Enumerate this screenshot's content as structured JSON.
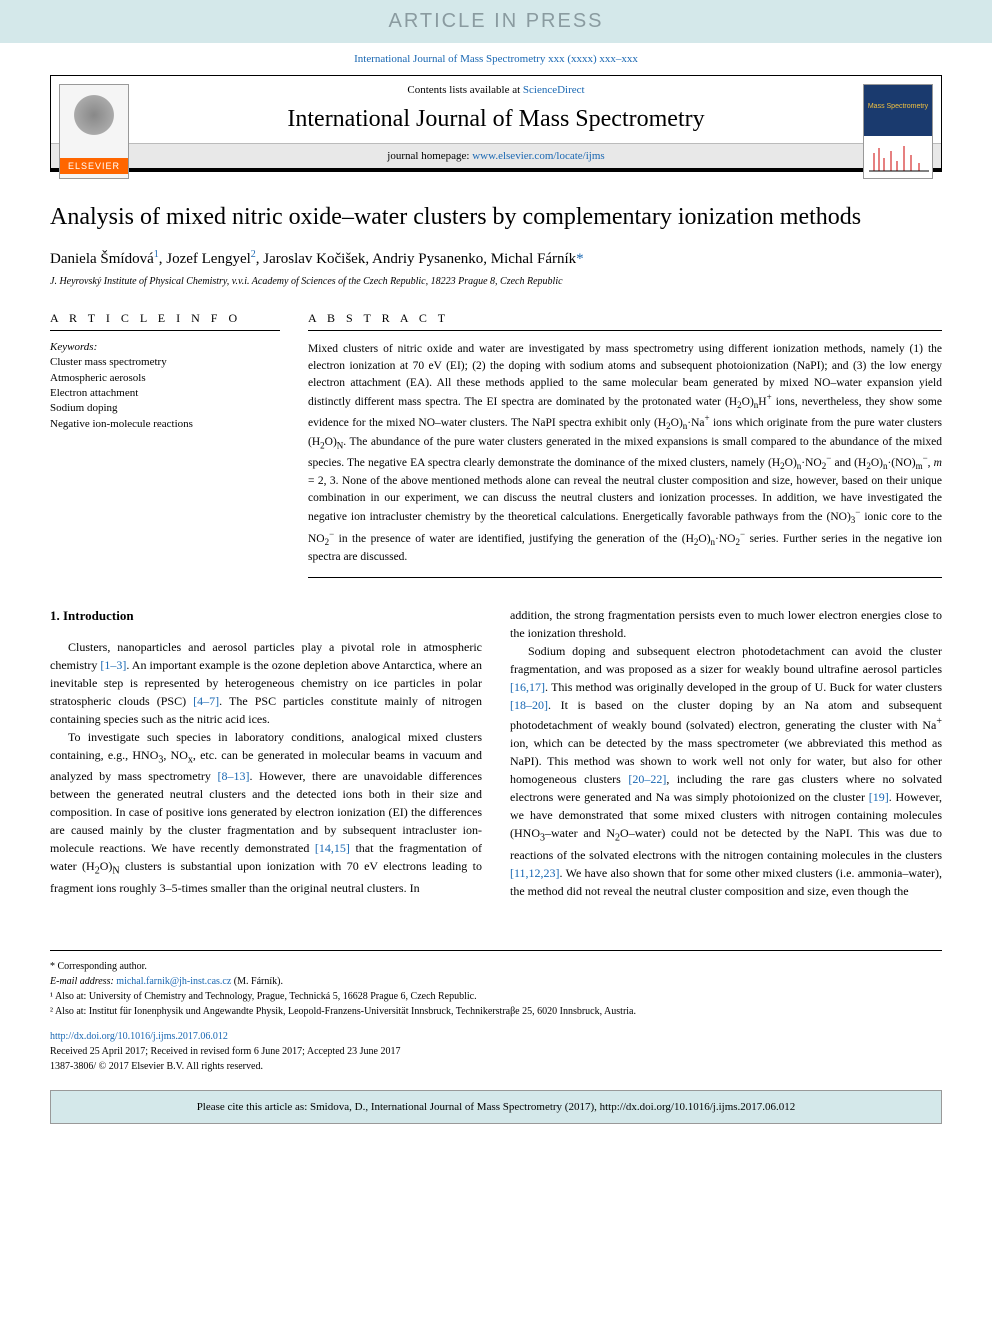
{
  "banner": {
    "text": "ARTICLE IN PRESS",
    "bg": "#d4e8ea",
    "fg": "#8a9ba0"
  },
  "journal_ref": "International Journal of Mass Spectrometry xxx (xxxx) xxx–xxx",
  "header": {
    "contents_text": "Contents lists available at ",
    "contents_link": "ScienceDirect",
    "journal_name": "International Journal of Mass Spectrometry",
    "homepage_label": "journal homepage: ",
    "homepage_url": "www.elsevier.com/locate/ijms",
    "publisher_logo": "ELSEVIER",
    "cover_logo": "Mass Spectrometry"
  },
  "article": {
    "title": "Analysis of mixed nitric oxide–water clusters by complementary ionization methods",
    "authors_html": "Daniela Šmídová<sup>1</sup>, Jozef Lengyel<sup>2</sup>, Jaroslav Kočišek, Andriy Pysanenko, Michal Fárník<span class='corr'>*</span>",
    "affiliation": "J. Heyrovský Institute of Physical Chemistry, v.v.i. Academy of Sciences of the Czech Republic, 18223 Prague 8, Czech Republic"
  },
  "info": {
    "header": "A R T I C L E  I N F O",
    "keywords_label": "Keywords:",
    "keywords": [
      "Cluster mass spectrometry",
      "Atmospheric aerosols",
      "Electron attachment",
      "Sodium doping",
      "Negative ion-molecule reactions"
    ]
  },
  "abstract": {
    "header": "A B S T R A C T",
    "text_html": "Mixed clusters of nitric oxide and water are investigated by mass spectrometry using different ionization methods, namely (1) the electron ionization at 70 eV (EI); (2) the doping with sodium atoms and subsequent photoionization (NaPI); and (3) the low energy electron attachment (EA). All these methods applied to the same molecular beam generated by mixed NO–water expansion yield distinctly different mass spectra. The EI spectra are dominated by the protonated water (H<sub>2</sub>O)<sub>n</sub>H<sup>+</sup> ions, nevertheless, they show some evidence for the mixed NO–water clusters. The NaPI spectra exhibit only (H<sub>2</sub>O)<sub>n</sub>·Na<sup>+</sup> ions which originate from the pure water clusters (H<sub>2</sub>O)<sub>N</sub>. The abundance of the pure water clusters generated in the mixed expansions is small compared to the abundance of the mixed species. The negative EA spectra clearly demonstrate the dominance of the mixed clusters, namely (H<sub>2</sub>O)<sub>n</sub>·NO<sub>2</sub><sup>−</sup> and (H<sub>2</sub>O)<sub>n</sub>·(NO)<sub>m</sub><sup>−</sup>, <i>m</i> = 2, 3. None of the above mentioned methods alone can reveal the neutral cluster composition and size, however, based on their unique combination in our experiment, we can discuss the neutral clusters and ionization processes. In addition, we have investigated the negative ion intracluster chemistry by the theoretical calculations. Energetically favorable pathways from the (NO)<sub>3</sub><sup>−</sup> ionic core to the NO<sub>2</sub><sup>−</sup> in the presence of water are identified, justifying the generation of the (H<sub>2</sub>O)<sub>n</sub>·NO<sub>2</sub><sup>−</sup> series. Further series in the negative ion spectra are discussed."
  },
  "intro": {
    "heading": "1. Introduction",
    "p1_html": "Clusters, nanoparticles and aerosol particles play a pivotal role in atmospheric chemistry <a href='#'>[1–3]</a>. An important example is the ozone depletion above Antarctica, where an inevitable step is represented by heterogeneous chemistry on ice particles in polar stratospheric clouds (PSC) <a href='#'>[4–7]</a>. The PSC particles constitute mainly of nitrogen containing species such as the nitric acid ices.",
    "p2_html": "To investigate such species in laboratory conditions, analogical mixed clusters containing, e.g., HNO<sub>3</sub>, NO<sub>x</sub>, etc. can be generated in molecular beams in vacuum and analyzed by mass spectrometry <a href='#'>[8–13]</a>. However, there are unavoidable differences between the generated neutral clusters and the detected ions both in their size and composition. In case of positive ions generated by electron ionization (EI) the differences are caused mainly by the cluster fragmentation and by subsequent intracluster ion-molecule reactions. We have recently demonstrated <a href='#'>[14,15]</a> that the fragmentation of water (H<sub>2</sub>O)<sub>N</sub> clusters is substantial upon ionization with 70 eV electrons leading to fragment ions roughly 3–5-times smaller than the original neutral clusters. In",
    "p3_html": "addition, the strong fragmentation persists even to much lower electron energies close to the ionization threshold.",
    "p4_html": "Sodium doping and subsequent electron photodetachment can avoid the cluster fragmentation, and was proposed as a sizer for weakly bound ultrafine aerosol particles <a href='#'>[16,17]</a>. This method was originally developed in the group of U. Buck for water clusters <a href='#'>[18–20]</a>. It is based on the cluster doping by an Na atom and subsequent photodetachment of weakly bound (solvated) electron, generating the cluster with Na<sup>+</sup> ion, which can be detected by the mass spectrometer (we abbreviated this method as NaPI). This method was shown to work well not only for water, but also for other homogeneous clusters <a href='#'>[20–22]</a>, including the rare gas clusters where no solvated electrons were generated and Na was simply photoionized on the cluster <a href='#'>[19]</a>. However, we have demonstrated that some mixed clusters with nitrogen containing molecules (HNO<sub>3</sub>–water and N<sub>2</sub>O–water) could not be detected by the NaPI. This was due to reactions of the solvated electrons with the nitrogen containing molecules in the clusters <a href='#'>[11,12,23]</a>. We have also shown that for some other mixed clusters (i.e. ammonia–water), the method did not reveal the neutral cluster composition and size, even though the"
  },
  "footnotes": {
    "corr": "* Corresponding author.",
    "email_label": "E-mail address: ",
    "email": "michal.farnik@jh-inst.cas.cz",
    "email_who": " (M. Fárník).",
    "fn1": "¹ Also at: University of Chemistry and Technology, Prague, Technická 5, 16628 Prague 6, Czech Republic.",
    "fn2": "² Also at: Institut für Ionenphysik und Angewandte Physik, Leopold-Franzens-Universität Innsbruck, Technikerstraβe 25, 6020 Innsbruck, Austria."
  },
  "doi": {
    "link": "http://dx.doi.org/10.1016/j.ijms.2017.06.012",
    "received": "Received 25 April 2017; Received in revised form 6 June 2017; Accepted 23 June 2017",
    "copyright": "1387-3806/ © 2017 Elsevier B.V. All rights reserved."
  },
  "cite_box": "Please cite this article as: Smidova, D., International Journal of Mass Spectrometry (2017), http://dx.doi.org/10.1016/j.ijms.2017.06.012",
  "colors": {
    "link": "#1967b2",
    "banner_bg": "#d4e8ea",
    "banner_fg": "#8a9ba0",
    "elsevier_orange": "#ff6600"
  }
}
